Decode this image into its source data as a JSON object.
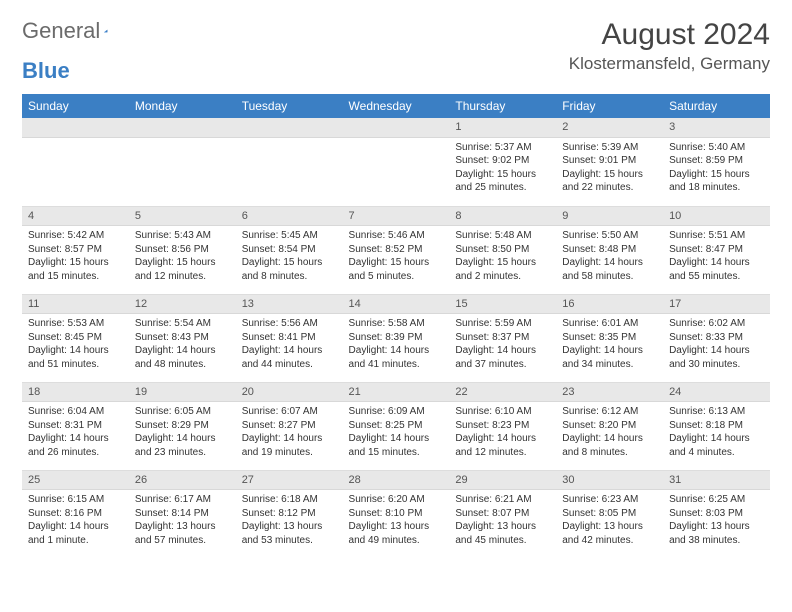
{
  "logo": {
    "text_a": "General",
    "text_b": "Blue"
  },
  "title": "August 2024",
  "location": "Klostermansfeld, Germany",
  "colors": {
    "header_bg": "#3b7fc4",
    "header_text": "#ffffff",
    "daynum_bg": "#e8e8e8",
    "body_bg": "#ffffff",
    "text": "#333333"
  },
  "weekdays": [
    "Sunday",
    "Monday",
    "Tuesday",
    "Wednesday",
    "Thursday",
    "Friday",
    "Saturday"
  ],
  "weeks": [
    [
      null,
      null,
      null,
      null,
      {
        "n": "1",
        "sr": "5:37 AM",
        "ss": "9:02 PM",
        "dl": "15 hours and 25 minutes."
      },
      {
        "n": "2",
        "sr": "5:39 AM",
        "ss": "9:01 PM",
        "dl": "15 hours and 22 minutes."
      },
      {
        "n": "3",
        "sr": "5:40 AM",
        "ss": "8:59 PM",
        "dl": "15 hours and 18 minutes."
      }
    ],
    [
      {
        "n": "4",
        "sr": "5:42 AM",
        "ss": "8:57 PM",
        "dl": "15 hours and 15 minutes."
      },
      {
        "n": "5",
        "sr": "5:43 AM",
        "ss": "8:56 PM",
        "dl": "15 hours and 12 minutes."
      },
      {
        "n": "6",
        "sr": "5:45 AM",
        "ss": "8:54 PM",
        "dl": "15 hours and 8 minutes."
      },
      {
        "n": "7",
        "sr": "5:46 AM",
        "ss": "8:52 PM",
        "dl": "15 hours and 5 minutes."
      },
      {
        "n": "8",
        "sr": "5:48 AM",
        "ss": "8:50 PM",
        "dl": "15 hours and 2 minutes."
      },
      {
        "n": "9",
        "sr": "5:50 AM",
        "ss": "8:48 PM",
        "dl": "14 hours and 58 minutes."
      },
      {
        "n": "10",
        "sr": "5:51 AM",
        "ss": "8:47 PM",
        "dl": "14 hours and 55 minutes."
      }
    ],
    [
      {
        "n": "11",
        "sr": "5:53 AM",
        "ss": "8:45 PM",
        "dl": "14 hours and 51 minutes."
      },
      {
        "n": "12",
        "sr": "5:54 AM",
        "ss": "8:43 PM",
        "dl": "14 hours and 48 minutes."
      },
      {
        "n": "13",
        "sr": "5:56 AM",
        "ss": "8:41 PM",
        "dl": "14 hours and 44 minutes."
      },
      {
        "n": "14",
        "sr": "5:58 AM",
        "ss": "8:39 PM",
        "dl": "14 hours and 41 minutes."
      },
      {
        "n": "15",
        "sr": "5:59 AM",
        "ss": "8:37 PM",
        "dl": "14 hours and 37 minutes."
      },
      {
        "n": "16",
        "sr": "6:01 AM",
        "ss": "8:35 PM",
        "dl": "14 hours and 34 minutes."
      },
      {
        "n": "17",
        "sr": "6:02 AM",
        "ss": "8:33 PM",
        "dl": "14 hours and 30 minutes."
      }
    ],
    [
      {
        "n": "18",
        "sr": "6:04 AM",
        "ss": "8:31 PM",
        "dl": "14 hours and 26 minutes."
      },
      {
        "n": "19",
        "sr": "6:05 AM",
        "ss": "8:29 PM",
        "dl": "14 hours and 23 minutes."
      },
      {
        "n": "20",
        "sr": "6:07 AM",
        "ss": "8:27 PM",
        "dl": "14 hours and 19 minutes."
      },
      {
        "n": "21",
        "sr": "6:09 AM",
        "ss": "8:25 PM",
        "dl": "14 hours and 15 minutes."
      },
      {
        "n": "22",
        "sr": "6:10 AM",
        "ss": "8:23 PM",
        "dl": "14 hours and 12 minutes."
      },
      {
        "n": "23",
        "sr": "6:12 AM",
        "ss": "8:20 PM",
        "dl": "14 hours and 8 minutes."
      },
      {
        "n": "24",
        "sr": "6:13 AM",
        "ss": "8:18 PM",
        "dl": "14 hours and 4 minutes."
      }
    ],
    [
      {
        "n": "25",
        "sr": "6:15 AM",
        "ss": "8:16 PM",
        "dl": "14 hours and 1 minute."
      },
      {
        "n": "26",
        "sr": "6:17 AM",
        "ss": "8:14 PM",
        "dl": "13 hours and 57 minutes."
      },
      {
        "n": "27",
        "sr": "6:18 AM",
        "ss": "8:12 PM",
        "dl": "13 hours and 53 minutes."
      },
      {
        "n": "28",
        "sr": "6:20 AM",
        "ss": "8:10 PM",
        "dl": "13 hours and 49 minutes."
      },
      {
        "n": "29",
        "sr": "6:21 AM",
        "ss": "8:07 PM",
        "dl": "13 hours and 45 minutes."
      },
      {
        "n": "30",
        "sr": "6:23 AM",
        "ss": "8:05 PM",
        "dl": "13 hours and 42 minutes."
      },
      {
        "n": "31",
        "sr": "6:25 AM",
        "ss": "8:03 PM",
        "dl": "13 hours and 38 minutes."
      }
    ]
  ],
  "labels": {
    "sunrise": "Sunrise:",
    "sunset": "Sunset:",
    "daylight": "Daylight:"
  }
}
